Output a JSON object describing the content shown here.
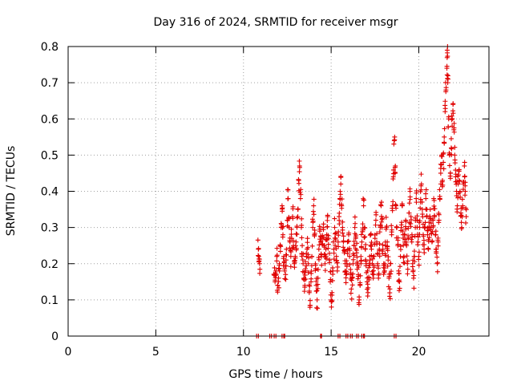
{
  "chart_data": {
    "type": "scatter",
    "title": "Day 316 of 2024, SRMTID for receiver msgr",
    "xlabel": "GPS time / hours",
    "ylabel": "SRMTID / TECUs",
    "xlim": [
      0,
      24
    ],
    "ylim": [
      0,
      0.8
    ],
    "x_ticks": [
      0,
      5,
      10,
      15,
      20
    ],
    "x_tick_labels": [
      "0",
      "5",
      "10",
      "15",
      "20"
    ],
    "y_ticks": [
      0,
      0.1,
      0.2,
      0.3,
      0.4,
      0.5,
      0.6,
      0.7,
      0.8
    ],
    "y_tick_labels": [
      "0",
      "0.1",
      "0.2",
      "0.3",
      "0.4",
      "0.5",
      "0.6",
      "0.7",
      "0.8"
    ],
    "grid": true,
    "marker": "+",
    "color": "#e00000",
    "series": [
      {
        "name": "SRMTID",
        "points": [
          [
            10.85,
            0.24
          ],
          [
            10.88,
            0.205
          ],
          [
            10.92,
            0.2
          ],
          [
            11.75,
            0.17
          ],
          [
            11.8,
            0.15
          ],
          [
            11.85,
            0.18
          ],
          [
            11.9,
            0.22
          ],
          [
            11.95,
            0.14
          ],
          [
            12.0,
            0.16
          ],
          [
            12.05,
            0.2
          ],
          [
            12.1,
            0.25
          ],
          [
            12.15,
            0.3
          ],
          [
            12.2,
            0.36
          ],
          [
            12.25,
            0.28
          ],
          [
            12.3,
            0.22
          ],
          [
            12.35,
            0.18
          ],
          [
            12.4,
            0.17
          ],
          [
            12.45,
            0.24
          ],
          [
            12.5,
            0.32
          ],
          [
            12.55,
            0.38
          ],
          [
            12.6,
            0.3
          ],
          [
            12.65,
            0.26
          ],
          [
            12.7,
            0.22
          ],
          [
            12.75,
            0.27
          ],
          [
            12.8,
            0.33
          ],
          [
            12.85,
            0.25
          ],
          [
            12.9,
            0.2
          ],
          [
            12.95,
            0.22
          ],
          [
            13.0,
            0.26
          ],
          [
            13.05,
            0.3
          ],
          [
            13.1,
            0.35
          ],
          [
            13.15,
            0.43
          ],
          [
            13.2,
            0.47
          ],
          [
            13.25,
            0.38
          ],
          [
            13.3,
            0.3
          ],
          [
            13.35,
            0.25
          ],
          [
            13.4,
            0.2
          ],
          [
            13.45,
            0.16
          ],
          [
            13.5,
            0.14
          ],
          [
            13.55,
            0.18
          ],
          [
            13.6,
            0.22
          ],
          [
            13.65,
            0.27
          ],
          [
            13.7,
            0.2
          ],
          [
            13.75,
            0.12
          ],
          [
            13.8,
            0.085
          ],
          [
            13.85,
            0.15
          ],
          [
            13.9,
            0.22
          ],
          [
            13.95,
            0.3
          ],
          [
            14.0,
            0.36
          ],
          [
            14.05,
            0.28
          ],
          [
            14.1,
            0.2
          ],
          [
            14.15,
            0.14
          ],
          [
            14.2,
            0.1
          ],
          [
            14.25,
            0.16
          ],
          [
            14.3,
            0.24
          ],
          [
            14.35,
            0.29
          ],
          [
            14.4,
            0.26
          ],
          [
            14.45,
            0.22
          ],
          [
            14.5,
            0.27
          ],
          [
            14.55,
            0.3
          ],
          [
            14.6,
            0.25
          ],
          [
            14.65,
            0.2
          ],
          [
            14.7,
            0.24
          ],
          [
            14.75,
            0.28
          ],
          [
            14.8,
            0.33
          ],
          [
            14.85,
            0.27
          ],
          [
            14.9,
            0.21
          ],
          [
            14.95,
            0.15
          ],
          [
            15.0,
            0.1
          ],
          [
            15.05,
            0.12
          ],
          [
            15.1,
            0.18
          ],
          [
            15.15,
            0.24
          ],
          [
            15.2,
            0.3
          ],
          [
            15.25,
            0.27
          ],
          [
            15.3,
            0.22
          ],
          [
            15.35,
            0.18
          ],
          [
            15.4,
            0.26
          ],
          [
            15.45,
            0.33
          ],
          [
            15.5,
            0.38
          ],
          [
            15.55,
            0.42
          ],
          [
            15.6,
            0.36
          ],
          [
            15.65,
            0.3
          ],
          [
            15.7,
            0.26
          ],
          [
            15.75,
            0.23
          ],
          [
            15.8,
            0.2
          ],
          [
            15.85,
            0.17
          ],
          [
            15.9,
            0.2
          ],
          [
            15.95,
            0.24
          ],
          [
            16.0,
            0.28
          ],
          [
            16.05,
            0.22
          ],
          [
            16.1,
            0.17
          ],
          [
            16.15,
            0.13
          ],
          [
            16.2,
            0.16
          ],
          [
            16.25,
            0.2
          ],
          [
            16.3,
            0.25
          ],
          [
            16.35,
            0.3
          ],
          [
            16.4,
            0.27
          ],
          [
            16.45,
            0.23
          ],
          [
            16.5,
            0.2
          ],
          [
            16.55,
            0.17
          ],
          [
            16.6,
            0.1
          ],
          [
            16.65,
            0.14
          ],
          [
            16.7,
            0.2
          ],
          [
            16.75,
            0.26
          ],
          [
            16.8,
            0.31
          ],
          [
            16.85,
            0.36
          ],
          [
            16.9,
            0.3
          ],
          [
            16.95,
            0.24
          ],
          [
            17.0,
            0.2
          ],
          [
            17.05,
            0.15
          ],
          [
            17.1,
            0.12
          ],
          [
            17.15,
            0.16
          ],
          [
            17.2,
            0.22
          ],
          [
            17.25,
            0.28
          ],
          [
            17.3,
            0.24
          ],
          [
            17.35,
            0.2
          ],
          [
            17.4,
            0.16
          ],
          [
            17.45,
            0.22
          ],
          [
            17.5,
            0.27
          ],
          [
            17.55,
            0.32
          ],
          [
            17.6,
            0.26
          ],
          [
            17.65,
            0.2
          ],
          [
            17.7,
            0.16
          ],
          [
            17.75,
            0.24
          ],
          [
            17.8,
            0.3
          ],
          [
            17.85,
            0.36
          ],
          [
            17.9,
            0.3
          ],
          [
            17.95,
            0.24
          ],
          [
            18.0,
            0.2
          ],
          [
            18.05,
            0.18
          ],
          [
            18.1,
            0.25
          ],
          [
            18.15,
            0.3
          ],
          [
            18.2,
            0.26
          ],
          [
            18.25,
            0.21
          ],
          [
            18.3,
            0.16
          ],
          [
            18.35,
            0.13
          ],
          [
            18.4,
            0.2
          ],
          [
            18.45,
            0.28
          ],
          [
            18.5,
            0.36
          ],
          [
            18.55,
            0.44
          ],
          [
            18.6,
            0.54
          ],
          [
            18.65,
            0.45
          ],
          [
            18.7,
            0.36
          ],
          [
            18.75,
            0.3
          ],
          [
            18.8,
            0.25
          ],
          [
            18.85,
            0.18
          ],
          [
            18.9,
            0.15
          ],
          [
            18.95,
            0.22
          ],
          [
            19.0,
            0.3
          ],
          [
            19.05,
            0.36
          ],
          [
            19.1,
            0.28
          ],
          [
            19.15,
            0.22
          ],
          [
            19.2,
            0.26
          ],
          [
            19.25,
            0.32
          ],
          [
            19.3,
            0.25
          ],
          [
            19.35,
            0.2
          ],
          [
            19.4,
            0.27
          ],
          [
            19.45,
            0.34
          ],
          [
            19.5,
            0.4
          ],
          [
            19.55,
            0.33
          ],
          [
            19.6,
            0.26
          ],
          [
            19.65,
            0.2
          ],
          [
            19.7,
            0.16
          ],
          [
            19.75,
            0.22
          ],
          [
            19.8,
            0.3
          ],
          [
            19.85,
            0.38
          ],
          [
            19.9,
            0.32
          ],
          [
            19.95,
            0.26
          ],
          [
            20.0,
            0.22
          ],
          [
            20.05,
            0.3
          ],
          [
            20.1,
            0.37
          ],
          [
            20.15,
            0.42
          ],
          [
            20.2,
            0.35
          ],
          [
            20.25,
            0.28
          ],
          [
            20.3,
            0.24
          ],
          [
            20.35,
            0.3
          ],
          [
            20.4,
            0.38
          ],
          [
            20.45,
            0.33
          ],
          [
            20.5,
            0.28
          ],
          [
            20.55,
            0.24
          ],
          [
            20.6,
            0.3
          ],
          [
            20.65,
            0.35
          ],
          [
            20.7,
            0.3
          ],
          [
            20.75,
            0.26
          ],
          [
            20.8,
            0.32
          ],
          [
            20.85,
            0.38
          ],
          [
            20.9,
            0.33
          ],
          [
            20.95,
            0.28
          ],
          [
            21.0,
            0.24
          ],
          [
            21.05,
            0.2
          ],
          [
            21.1,
            0.26
          ],
          [
            21.15,
            0.32
          ],
          [
            21.2,
            0.38
          ],
          [
            21.25,
            0.45
          ],
          [
            21.3,
            0.5
          ],
          [
            21.35,
            0.43
          ],
          [
            21.4,
            0.48
          ],
          [
            21.45,
            0.55
          ],
          [
            21.5,
            0.62
          ],
          [
            21.55,
            0.68
          ],
          [
            21.6,
            0.74
          ],
          [
            21.62,
            0.79
          ],
          [
            21.65,
            0.7
          ],
          [
            21.7,
            0.6
          ],
          [
            21.75,
            0.5
          ],
          [
            21.8,
            0.45
          ],
          [
            21.85,
            0.52
          ],
          [
            21.9,
            0.58
          ],
          [
            21.95,
            0.64
          ],
          [
            22.0,
            0.57
          ],
          [
            22.05,
            0.5
          ],
          [
            22.1,
            0.44
          ],
          [
            22.15,
            0.4
          ],
          [
            22.2,
            0.36
          ],
          [
            22.25,
            0.42
          ],
          [
            22.3,
            0.46
          ],
          [
            22.35,
            0.4
          ],
          [
            22.4,
            0.34
          ],
          [
            22.45,
            0.3
          ],
          [
            22.5,
            0.36
          ],
          [
            22.55,
            0.42
          ],
          [
            22.6,
            0.47
          ],
          [
            22.65,
            0.4
          ],
          [
            22.7,
            0.33
          ]
        ]
      }
    ],
    "zero_points_x": [
      10.75,
      10.85,
      11.5,
      11.6,
      11.75,
      11.85,
      12.2,
      12.3,
      12.35,
      14.4,
      14.45,
      15.4,
      15.5,
      15.85,
      15.95,
      16.1,
      16.2,
      16.45,
      16.55,
      16.75,
      16.85,
      16.9,
      18.6,
      18.7
    ]
  }
}
